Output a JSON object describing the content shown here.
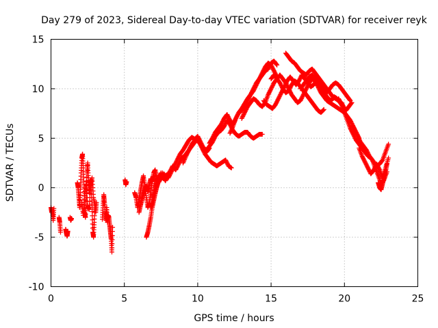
{
  "chart_data": {
    "type": "scatter",
    "title": "Day 279 of 2023, Sidereal Day-to-day VTEC variation (SDTVAR) for receiver reyk",
    "xlabel": "GPS time / hours",
    "ylabel": "SDTVAR / TECUs",
    "xlim": [
      0,
      25
    ],
    "ylim": [
      -10,
      15
    ],
    "xticks": [
      "0",
      "5",
      "10",
      "15",
      "20",
      "25"
    ],
    "yticks": [
      "-10",
      "-5",
      "0",
      "5",
      "10",
      "15"
    ],
    "grid": true,
    "marker": "plus",
    "series": [
      {
        "name": "SDTVAR",
        "color": "#ff0000",
        "segments": [
          {
            "x": [
              0.0,
              0.05,
              0.1,
              0.15,
              0.2
            ],
            "y": [
              -2.0,
              -2.5,
              -2.3,
              -3.3,
              -2.1
            ]
          },
          {
            "x": [
              0.55,
              0.6,
              0.65
            ],
            "y": [
              -3.0,
              -3.5,
              -4.5
            ]
          },
          {
            "x": [
              1.0,
              1.05,
              1.1,
              1.15
            ],
            "y": [
              -4.2,
              -4.6,
              -4.9,
              -4.4
            ]
          },
          {
            "x": [
              1.3,
              1.35,
              1.4
            ],
            "y": [
              -3.0,
              -3.3,
              -3.1
            ]
          },
          {
            "x": [
              1.8,
              1.85,
              1.9,
              1.95,
              2.0,
              2.05,
              2.1,
              2.15,
              2.2,
              2.25,
              2.3,
              2.35,
              2.4,
              2.45,
              2.5,
              2.55,
              2.6,
              2.65,
              2.7,
              2.75,
              2.8,
              2.85,
              2.9,
              2.95,
              3.0,
              3.05,
              3.1
            ],
            "y": [
              0.5,
              0.0,
              -1.0,
              -2.0,
              -0.5,
              1.5,
              3.0,
              3.4,
              2.0,
              0.0,
              -2.5,
              -3.0,
              -1.0,
              1.5,
              2.5,
              1.0,
              -0.5,
              0.5,
              0.8,
              0.0,
              -2.0,
              -4.5,
              -5.0,
              -3.5,
              -1.5,
              -2.5,
              -1.5
            ]
          },
          {
            "x": [
              2.1,
              2.2,
              2.3,
              2.4,
              2.5,
              2.6,
              2.7,
              2.8,
              2.9,
              3.0
            ],
            "y": [
              -1.5,
              -2.8,
              -0.8,
              0.6,
              -1.8,
              -2.2,
              0.2,
              1.0,
              -1.0,
              -2.0
            ]
          },
          {
            "x": [
              3.5,
              3.55,
              3.6,
              3.65,
              3.7,
              3.75,
              3.8,
              3.85,
              3.9,
              3.95,
              4.0,
              4.05,
              4.1,
              4.15,
              4.2
            ],
            "y": [
              -3.2,
              -1.8,
              -0.7,
              -1.5,
              -2.6,
              -3.3,
              -2.0,
              -3.5,
              -2.8,
              -3.0,
              -3.8,
              -4.5,
              -5.2,
              -6.5,
              -4.0
            ]
          },
          {
            "x": [
              5.05,
              5.1,
              5.15
            ],
            "y": [
              0.8,
              0.3,
              0.6
            ]
          },
          {
            "x": [
              5.7,
              5.8,
              5.9,
              6.0,
              6.1,
              6.2,
              6.3,
              6.4,
              6.5,
              6.6,
              6.7,
              6.8,
              6.9,
              7.0,
              7.1,
              7.2,
              7.3,
              7.4,
              7.5,
              7.6,
              7.7,
              7.8,
              7.9,
              8.0
            ],
            "y": [
              -0.5,
              -1.0,
              -2.0,
              -1.2,
              -0.3,
              0.5,
              1.2,
              0.2,
              -1.0,
              -2.0,
              -1.5,
              -0.5,
              0.6,
              1.5,
              1.8,
              1.0,
              0.5,
              1.2,
              0.8,
              1.5,
              1.0,
              0.7,
              1.2,
              1.5
            ]
          },
          {
            "x": [
              6.0,
              6.1,
              6.2,
              6.3,
              6.4,
              6.5,
              6.6,
              6.7,
              6.8,
              6.9,
              7.0
            ],
            "y": [
              -2.5,
              -1.8,
              -1.2,
              -0.6,
              -0.1,
              0.2,
              -0.4,
              0.3,
              0.9,
              0.6,
              1.2
            ]
          },
          {
            "x": [
              6.5,
              6.6,
              6.7,
              6.8,
              6.9,
              7.0,
              7.1,
              7.2,
              7.3,
              7.4,
              7.5
            ],
            "y": [
              -5.0,
              -4.5,
              -3.8,
              -3.0,
              -2.0,
              -1.3,
              -0.6,
              0.0,
              0.5,
              1.0,
              1.5
            ]
          },
          {
            "x": [
              6.8,
              6.9,
              7.0,
              7.1,
              7.2,
              7.3
            ],
            "y": [
              -2.0,
              -1.5,
              -0.6,
              0.1,
              0.6,
              1.0
            ]
          },
          {
            "x": [
              7.5,
              7.7,
              7.9,
              8.1,
              8.3,
              8.5,
              8.7,
              8.9,
              9.1,
              9.3,
              9.5,
              9.7,
              9.9,
              10.1,
              10.3,
              10.5,
              10.7,
              10.9,
              11.1,
              11.3,
              11.5,
              11.7,
              11.9,
              12.1,
              12.3
            ],
            "y": [
              0.8,
              1.4,
              1.0,
              1.6,
              2.2,
              1.8,
              2.4,
              3.0,
              3.2,
              3.6,
              4.0,
              4.4,
              4.8,
              4.6,
              4.0,
              3.4,
              3.0,
              2.6,
              2.4,
              2.2,
              2.4,
              2.6,
              2.8,
              2.2,
              2.0
            ]
          },
          {
            "x": [
              8.0,
              8.2,
              8.4,
              8.6,
              8.8,
              9.0,
              9.2,
              9.4,
              9.6,
              9.8,
              10.0,
              10.2,
              10.4,
              10.6,
              10.8,
              11.0,
              11.2,
              11.4,
              11.6,
              11.8,
              12.0,
              12.2,
              12.4,
              12.6,
              12.8,
              13.0,
              13.2,
              13.4,
              13.6,
              13.8,
              14.0,
              14.2,
              14.4
            ],
            "y": [
              1.0,
              1.6,
              2.2,
              2.8,
              3.4,
              3.8,
              4.3,
              4.8,
              5.1,
              4.9,
              5.2,
              4.6,
              4.0,
              3.8,
              4.2,
              4.6,
              5.2,
              5.6,
              5.8,
              6.2,
              6.8,
              6.4,
              5.8,
              5.4,
              5.2,
              5.4,
              5.6,
              5.6,
              5.2,
              5.0,
              5.2,
              5.4,
              5.4
            ]
          },
          {
            "x": [
              9.0,
              9.2,
              9.4,
              9.6,
              9.8,
              10.0,
              10.2,
              10.4,
              10.6,
              10.8
            ],
            "y": [
              2.5,
              3.2,
              3.8,
              4.4,
              4.8,
              5.0,
              4.4,
              3.8,
              3.6,
              4.0
            ]
          },
          {
            "x": [
              10.8,
              11.0,
              11.2,
              11.4,
              11.6,
              11.8,
              12.0,
              12.2,
              12.4,
              12.6,
              12.8,
              13.0,
              13.2,
              13.4,
              13.6,
              13.8,
              14.0,
              14.2,
              14.4,
              14.6,
              14.8,
              15.0,
              15.2,
              15.4
            ],
            "y": [
              4.5,
              5.0,
              5.6,
              6.0,
              6.4,
              7.0,
              7.4,
              6.8,
              6.4,
              7.0,
              7.6,
              8.0,
              8.5,
              9.0,
              9.4,
              10.0,
              10.6,
              11.0,
              11.4,
              11.8,
              12.0,
              12.6,
              12.8,
              12.4
            ]
          },
          {
            "x": [
              12.2,
              12.4,
              12.6,
              12.8,
              13.0,
              13.2,
              13.4,
              13.6,
              13.8,
              14.0,
              14.2,
              14.4,
              14.6,
              14.8,
              15.0,
              15.2,
              15.4
            ],
            "y": [
              5.5,
              6.2,
              7.0,
              7.6,
              7.8,
              8.2,
              8.8,
              9.4,
              9.8,
              10.4,
              11.0,
              11.6,
              12.2,
              12.6,
              12.4,
              11.8,
              11.2
            ]
          },
          {
            "x": [
              13.0,
              13.2,
              13.4,
              13.6,
              13.8,
              14.0,
              14.2,
              14.4,
              14.6,
              14.8,
              15.0,
              15.2,
              15.4,
              15.6,
              15.8,
              16.0,
              16.2,
              16.4,
              16.6,
              16.8,
              17.0,
              17.2,
              17.4,
              17.6,
              17.8,
              18.0,
              18.2,
              18.4,
              18.6,
              18.8,
              19.0,
              19.2,
              19.4,
              19.6,
              19.8,
              20.0,
              20.2,
              20.4,
              20.6,
              20.8,
              21.0
            ],
            "y": [
              7.0,
              7.6,
              8.2,
              8.6,
              9.0,
              8.8,
              8.4,
              8.2,
              8.6,
              9.4,
              10.0,
              10.6,
              11.0,
              11.4,
              11.0,
              10.6,
              10.0,
              9.4,
              9.0,
              8.6,
              8.8,
              9.4,
              10.0,
              10.6,
              11.0,
              10.8,
              10.2,
              9.6,
              9.2,
              8.8,
              8.6,
              8.4,
              8.2,
              8.0,
              7.8,
              7.6,
              7.2,
              6.8,
              6.2,
              5.6,
              5.0
            ]
          },
          {
            "x": [
              14.5,
              14.7,
              14.9,
              15.1,
              15.3,
              15.5,
              15.7,
              15.9,
              16.1,
              16.3,
              16.5,
              16.7,
              16.9,
              17.1,
              17.3,
              17.5,
              17.7,
              17.9,
              18.1,
              18.3,
              18.5,
              18.7,
              18.9,
              19.1,
              19.3,
              19.5,
              19.7,
              19.9,
              20.1,
              20.3,
              20.5
            ],
            "y": [
              8.8,
              8.4,
              8.2,
              8.0,
              8.4,
              9.0,
              9.6,
              10.2,
              10.8,
              11.2,
              10.8,
              10.4,
              10.8,
              11.4,
              11.0,
              10.6,
              10.2,
              10.4,
              10.8,
              10.4,
              9.8,
              9.4,
              9.0,
              8.8,
              9.2,
              9.0,
              8.6,
              8.2,
              7.8,
              8.2,
              8.6
            ]
          },
          {
            "x": [
              15.0,
              15.2,
              15.4,
              15.6,
              15.8,
              16.0,
              16.2,
              16.4,
              16.6,
              16.8,
              17.0,
              17.2,
              17.4,
              17.6,
              17.8,
              18.0,
              18.2,
              18.4,
              18.6
            ],
            "y": [
              11.0,
              11.4,
              11.0,
              10.6,
              10.0,
              9.6,
              9.8,
              10.4,
              10.8,
              10.6,
              10.2,
              9.8,
              9.4,
              9.0,
              8.6,
              8.2,
              7.8,
              7.6,
              7.9
            ]
          },
          {
            "x": [
              16.0,
              16.2,
              16.4,
              16.6,
              16.8,
              17.0,
              17.2,
              17.4,
              17.6,
              17.8,
              18.0,
              18.2,
              18.4,
              18.6,
              18.8,
              19.0,
              19.2,
              19.4,
              19.6,
              19.8,
              20.0
            ],
            "y": [
              13.6,
              13.2,
              12.8,
              12.6,
              12.2,
              11.8,
              11.6,
              11.4,
              11.8,
              12.0,
              11.6,
              11.2,
              10.8,
              10.4,
              10.0,
              9.6,
              9.2,
              9.0,
              8.8,
              8.6,
              8.0
            ]
          },
          {
            "x": [
              17.0,
              17.2,
              17.4,
              17.6,
              17.8,
              18.0,
              18.2,
              18.4,
              18.6,
              18.8,
              19.0,
              19.2,
              19.4,
              19.6,
              19.8,
              20.0,
              20.2,
              20.4
            ],
            "y": [
              10.0,
              10.4,
              10.8,
              11.2,
              11.4,
              11.0,
              10.6,
              10.2,
              9.8,
              9.6,
              10.0,
              10.4,
              10.6,
              10.4,
              10.0,
              9.6,
              9.2,
              8.8
            ]
          },
          {
            "x": [
              19.6,
              19.8,
              20.0,
              20.2,
              20.4,
              20.6,
              20.8,
              21.0,
              21.2,
              21.4,
              21.6,
              21.8,
              22.0,
              22.2,
              22.4,
              22.6,
              22.8,
              23.0
            ],
            "y": [
              9.0,
              8.4,
              7.6,
              6.8,
              6.0,
              5.4,
              4.8,
              4.4,
              4.0,
              3.6,
              3.2,
              3.0,
              2.6,
              2.2,
              2.4,
              2.8,
              3.6,
              4.4
            ]
          },
          {
            "x": [
              20.5,
              20.7,
              20.9,
              21.1,
              21.3,
              21.5,
              21.7,
              21.9,
              22.1,
              22.3,
              22.5,
              22.7,
              22.9
            ],
            "y": [
              6.4,
              5.8,
              5.2,
              4.6,
              4.2,
              3.8,
              3.2,
              2.8,
              2.0,
              1.2,
              0.4,
              0.8,
              1.6
            ]
          },
          {
            "x": [
              21.0,
              21.2,
              21.4,
              21.6,
              21.8,
              22.0,
              22.2,
              22.4,
              22.6,
              22.8,
              23.0
            ],
            "y": [
              4.0,
              3.2,
              2.6,
              2.0,
              1.4,
              1.8,
              2.4,
              1.8,
              1.0,
              2.0,
              3.0
            ]
          },
          {
            "x": [
              22.3,
              22.4,
              22.5,
              22.6,
              22.7,
              22.8,
              22.9
            ],
            "y": [
              0.5,
              0.0,
              -0.2,
              0.4,
              1.0,
              1.6,
              2.4
            ]
          }
        ]
      }
    ]
  }
}
